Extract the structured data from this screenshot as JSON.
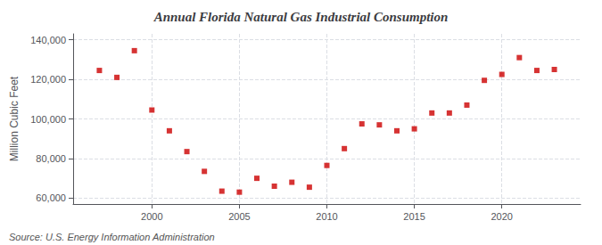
{
  "chart_data": {
    "type": "scatter",
    "title": "Annual Florida Natural Gas Industrial Consumption",
    "y_label": "Million Cubic Feet",
    "annotations": [
      "Source: U.S. Energy Information Administration"
    ],
    "x": [
      1997,
      1998,
      1999,
      2000,
      2001,
      2002,
      2003,
      2004,
      2005,
      2006,
      2007,
      2008,
      2009,
      2010,
      2011,
      2012,
      2013,
      2014,
      2015,
      2016,
      2017,
      2018,
      2019,
      2020,
      2021,
      2022,
      2023
    ],
    "values": [
      124500,
      121000,
      134500,
      104500,
      94000,
      83500,
      73500,
      63500,
      63000,
      70000,
      66000,
      68000,
      65500,
      76500,
      85000,
      97500,
      97000,
      94000,
      95000,
      103000,
      103000,
      107000,
      119500,
      122500,
      131000,
      124500,
      125000
    ],
    "color": "#cc0000",
    "marker": "square",
    "xlim": [
      1995.5,
      2024.5
    ],
    "xticks": [
      2000,
      2005,
      2010,
      2015,
      2020
    ],
    "ylim": [
      57000,
      143000
    ],
    "yticks": [
      {
        "value": 60000,
        "label": "60,000"
      },
      {
        "value": 80000,
        "label": "80,000"
      },
      {
        "value": 100000,
        "label": "100,000"
      },
      {
        "value": 120000,
        "label": "120,000"
      },
      {
        "value": 140000,
        "label": "140,000"
      }
    ],
    "grid": true
  }
}
